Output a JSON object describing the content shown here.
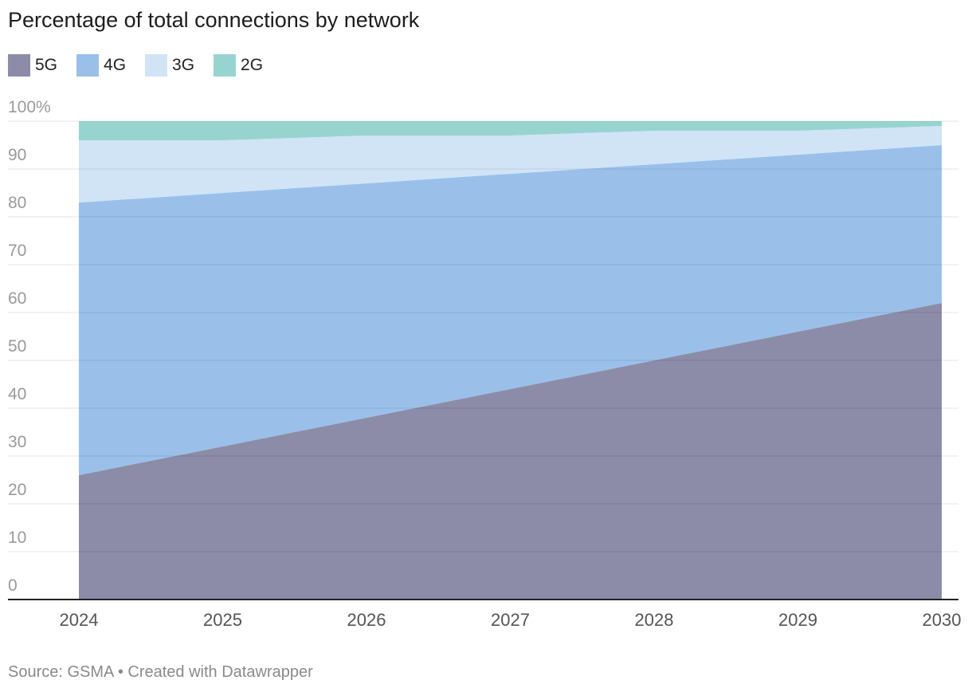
{
  "chart_data": {
    "type": "area",
    "stacked": true,
    "title": "Percentage of total connections by network",
    "x": [
      2024,
      2025,
      2026,
      2027,
      2028,
      2029,
      2030
    ],
    "series": [
      {
        "name": "5G",
        "color": "#8c8ca9",
        "values": [
          26,
          32,
          38,
          44,
          50,
          56,
          62
        ]
      },
      {
        "name": "4G",
        "color": "#9ac0ea",
        "values": [
          57,
          53,
          49,
          45,
          41,
          37,
          33
        ]
      },
      {
        "name": "3G",
        "color": "#d1e4f6",
        "values": [
          13,
          11,
          10,
          8,
          7,
          5,
          4
        ]
      },
      {
        "name": "2G",
        "color": "#97d4d0",
        "values": [
          4,
          4,
          3,
          3,
          2,
          2,
          1
        ]
      }
    ],
    "ylim": [
      0,
      100
    ],
    "y_ticks": [
      "0",
      "10",
      "20",
      "30",
      "40",
      "50",
      "60",
      "70",
      "80",
      "90",
      "100%"
    ],
    "x_ticks": [
      "2024",
      "2025",
      "2026",
      "2027",
      "2028",
      "2029",
      "2030"
    ],
    "grid": true,
    "legend_position": "top-left"
  },
  "footer": {
    "source": "Source: GSMA • Created with Datawrapper"
  }
}
